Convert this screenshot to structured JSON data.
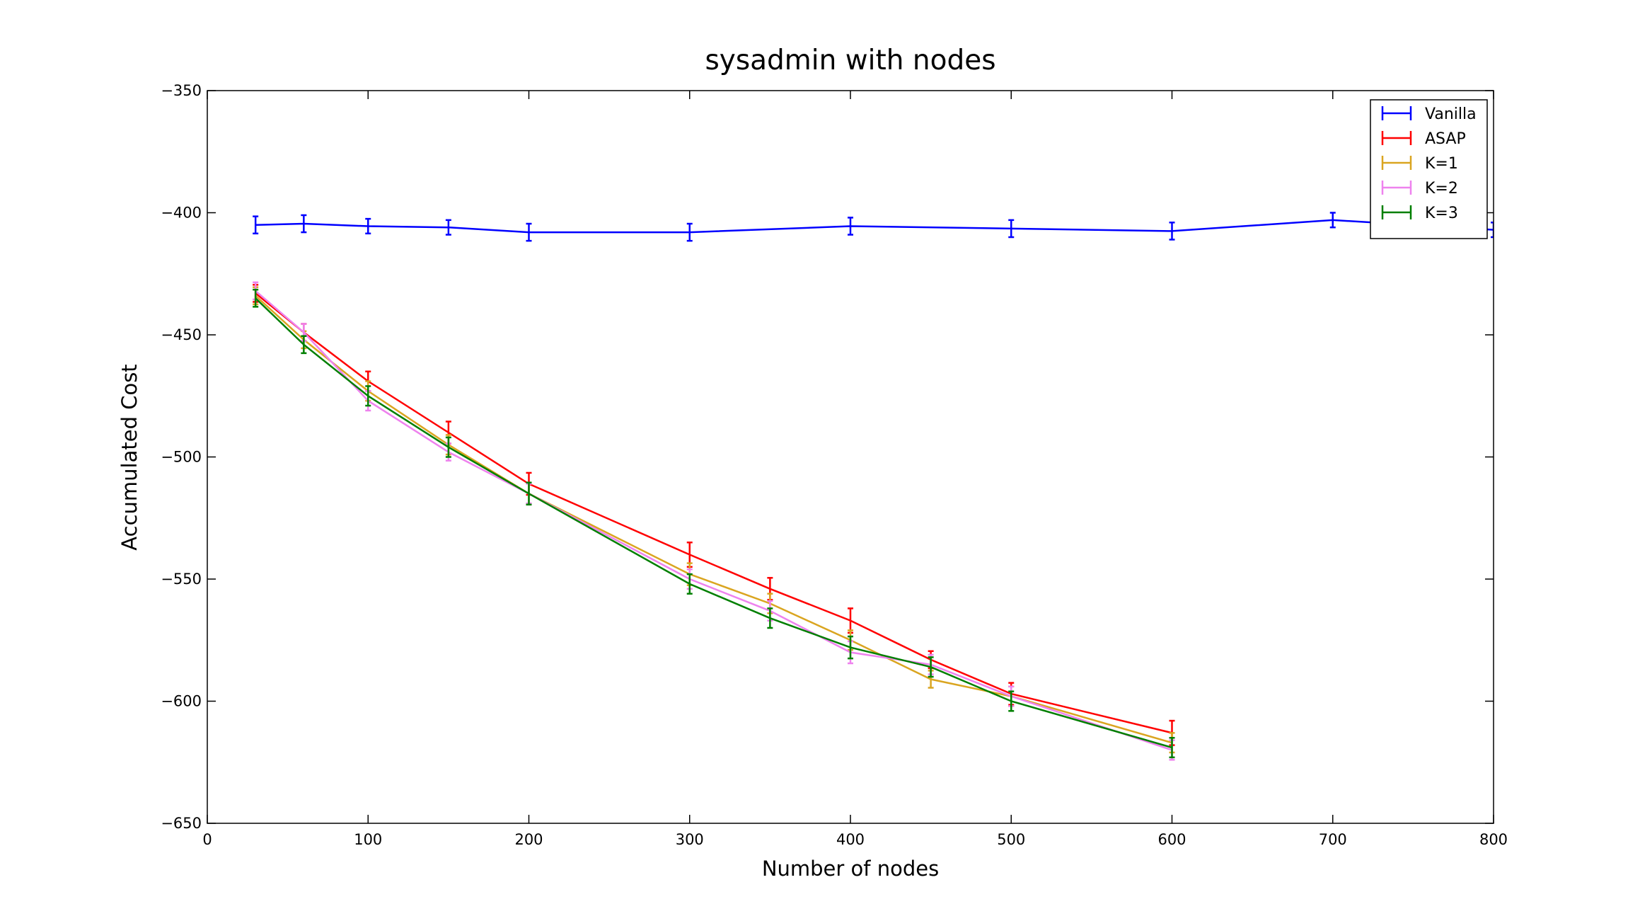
{
  "chart_data": {
    "type": "line",
    "title": "sysadmin with nodes",
    "xlabel": "Number of nodes",
    "ylabel": "Accumulated Cost",
    "xlim": [
      0,
      800
    ],
    "ylim": [
      -650,
      -350
    ],
    "xticks": [
      0,
      100,
      200,
      300,
      400,
      500,
      600,
      700,
      800
    ],
    "yticks": [
      -350,
      -400,
      -450,
      -500,
      -550,
      -600,
      -650
    ],
    "grid": false,
    "legend_position": "top-right",
    "error_bars": true,
    "series": [
      {
        "name": "Vanilla",
        "color": "#0000ff",
        "x": [
          30,
          60,
          100,
          150,
          200,
          300,
          400,
          500,
          600,
          700,
          800
        ],
        "y": [
          -405,
          -404.5,
          -405.5,
          -406,
          -408,
          -408,
          -405.5,
          -406.5,
          -407.5,
          -403,
          -407
        ],
        "err": [
          3.5,
          3.5,
          3,
          3,
          3.5,
          3.5,
          3.5,
          3.5,
          3.5,
          3,
          3
        ]
      },
      {
        "name": "ASAP",
        "color": "#ff0000",
        "x": [
          30,
          60,
          100,
          150,
          200,
          300,
          350,
          400,
          450,
          500,
          600
        ],
        "y": [
          -433,
          -449,
          -469,
          -490,
          -511,
          -540,
          -554,
          -567,
          -583,
          -597,
          -613
        ],
        "err": [
          3.5,
          3.5,
          4,
          4.5,
          4.5,
          5,
          4.5,
          5,
          3.5,
          4.5,
          5
        ]
      },
      {
        "name": "K=1",
        "color": "#daa520",
        "x": [
          30,
          60,
          100,
          150,
          200,
          300,
          350,
          400,
          450,
          500,
          600
        ],
        "y": [
          -434,
          -452,
          -473,
          -495,
          -515,
          -548,
          -560,
          -575,
          -591,
          -598,
          -617
        ],
        "err": [
          3.5,
          3.5,
          4,
          4,
          4.5,
          4.5,
          4,
          4,
          3.5,
          4,
          4
        ]
      },
      {
        "name": "K=2",
        "color": "#ee82ee",
        "x": [
          30,
          60,
          100,
          150,
          200,
          300,
          350,
          400,
          450,
          500,
          600
        ],
        "y": [
          -432,
          -449,
          -477,
          -498,
          -515,
          -550,
          -563,
          -580,
          -585,
          -598,
          -620
        ],
        "err": [
          3.5,
          3.5,
          4,
          3.5,
          4,
          4,
          4,
          4.5,
          4,
          4,
          4
        ]
      },
      {
        "name": "K=3",
        "color": "#007f00",
        "x": [
          30,
          60,
          100,
          150,
          200,
          300,
          350,
          400,
          450,
          500,
          600
        ],
        "y": [
          -435,
          -454,
          -475,
          -496,
          -515,
          -552,
          -566,
          -578,
          -586,
          -600,
          -619
        ],
        "err": [
          3.5,
          3.5,
          4,
          4,
          4.5,
          4,
          4,
          4.5,
          4,
          4,
          4
        ]
      }
    ]
  }
}
